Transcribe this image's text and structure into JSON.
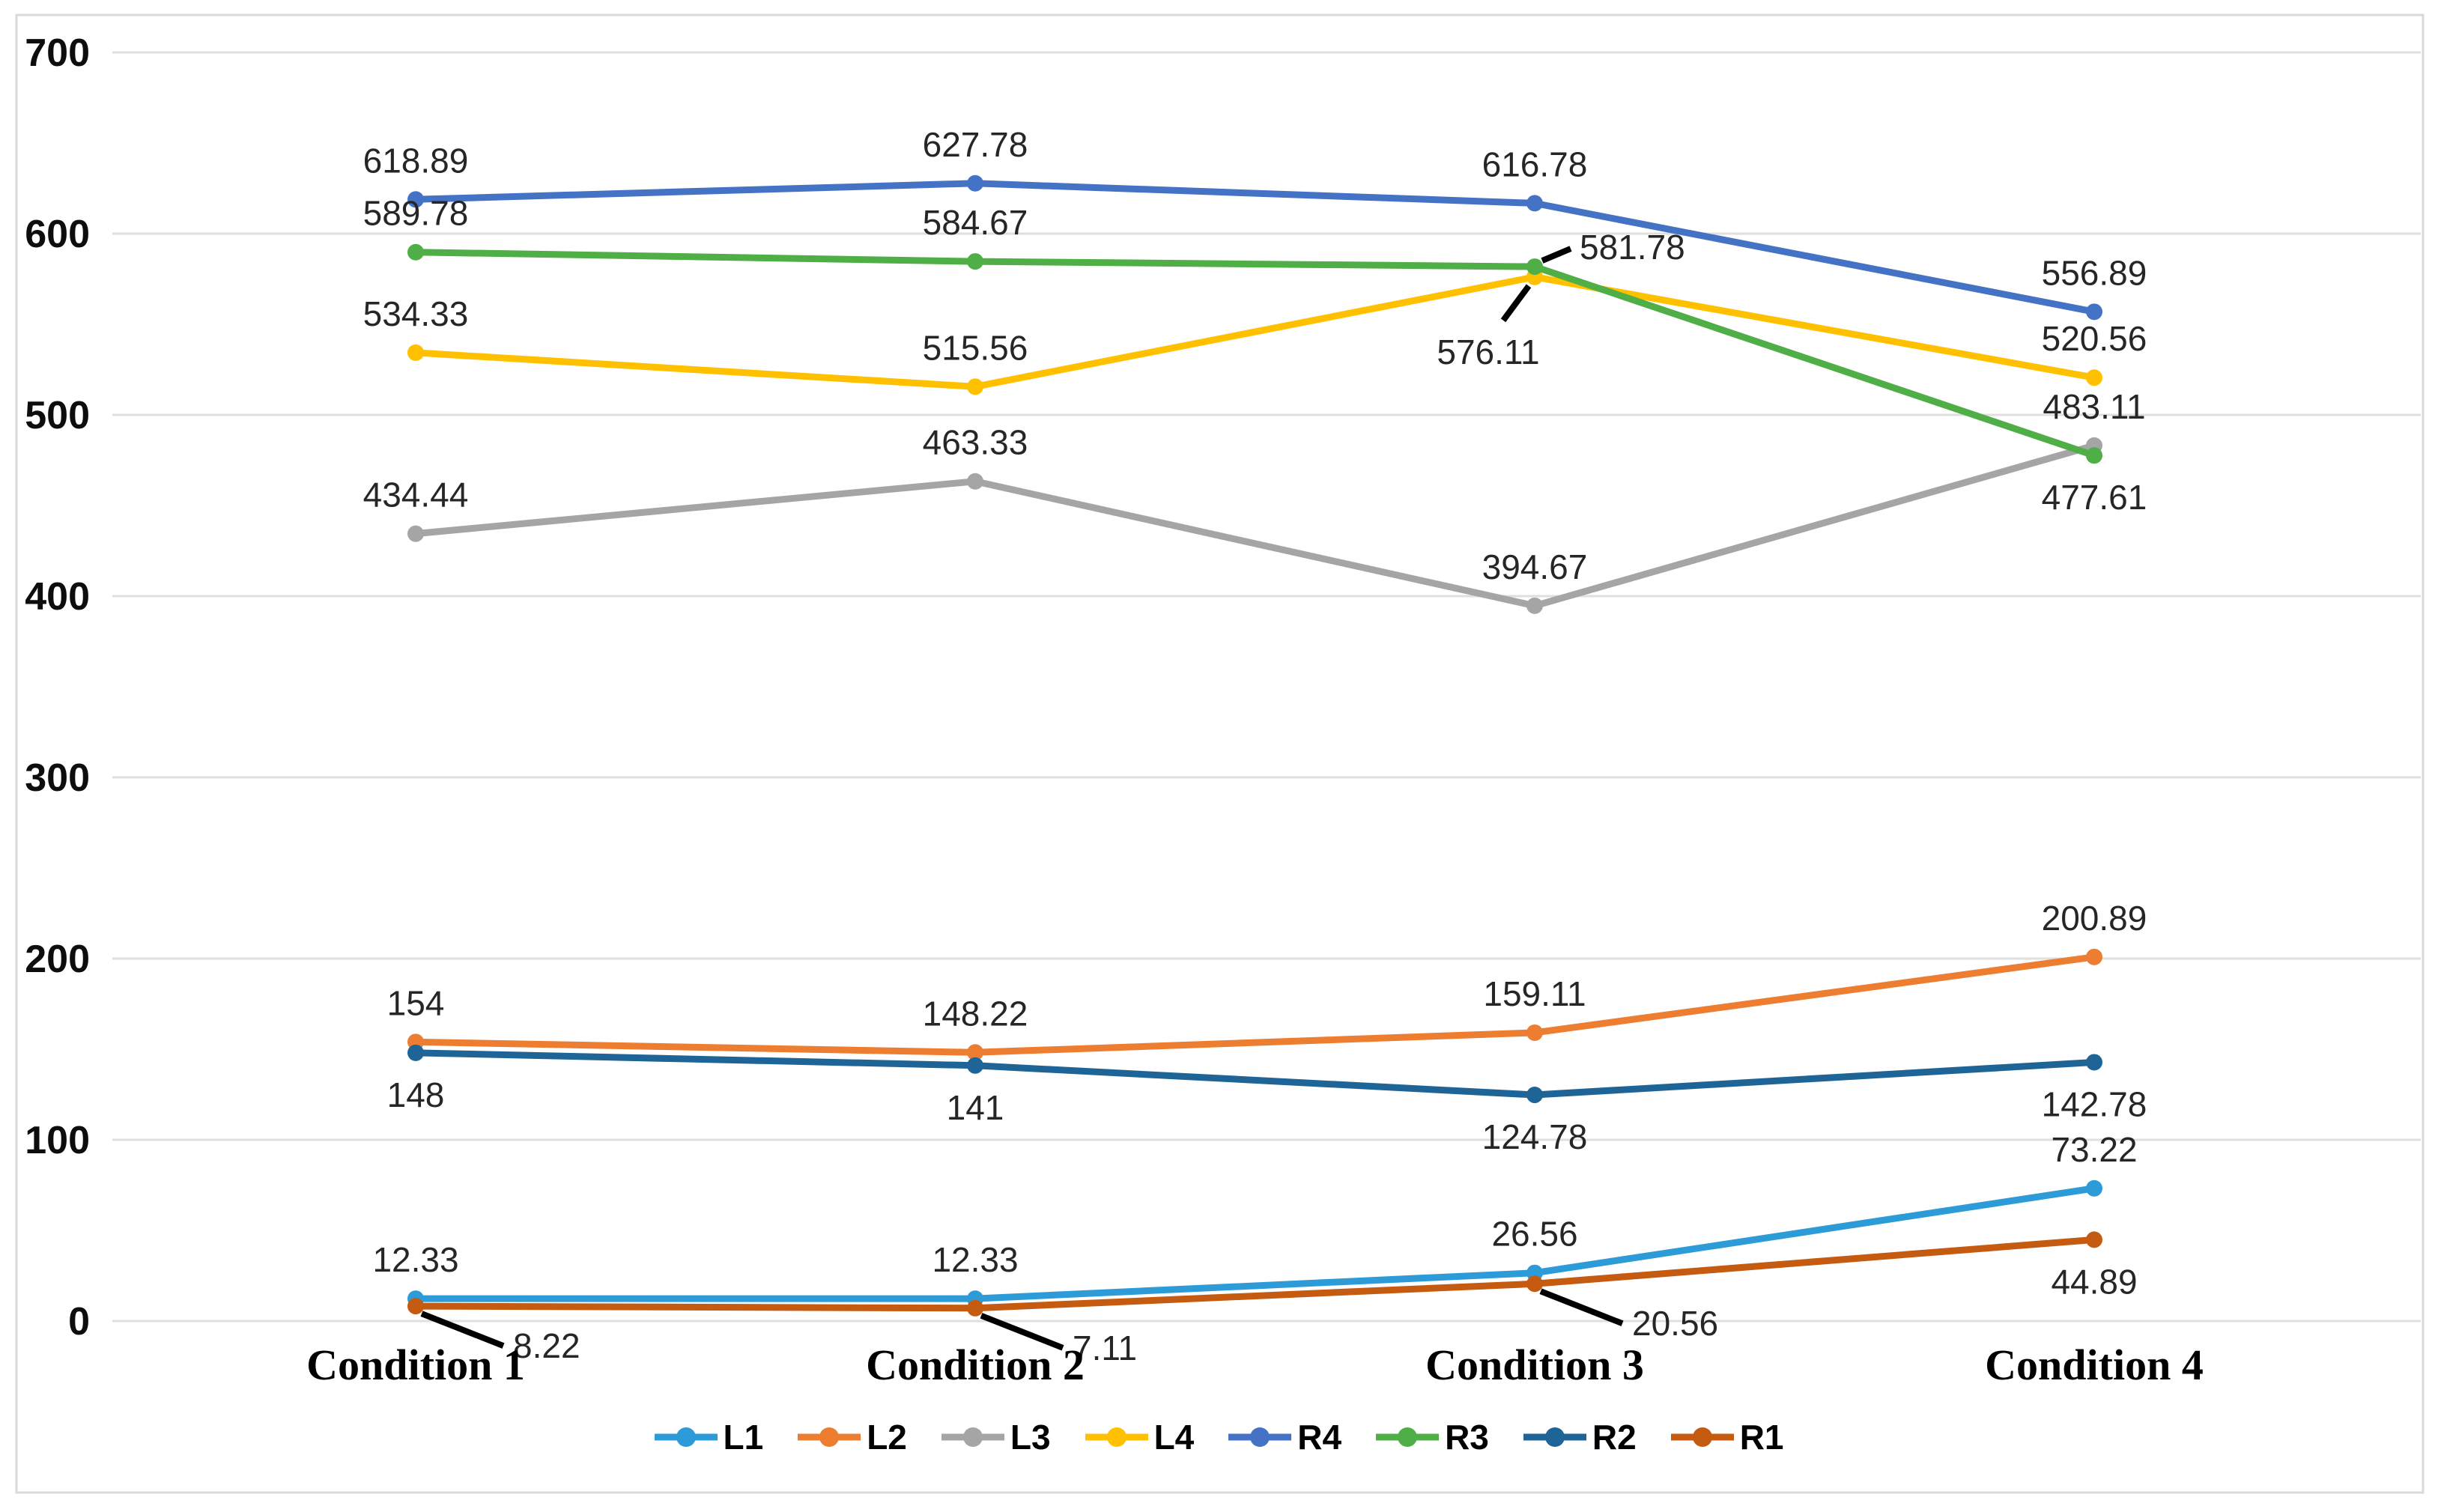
{
  "chart_data": {
    "type": "line",
    "title": "",
    "xlabel": "",
    "ylabel": "",
    "categories": [
      "Condition 1",
      "Condition 2",
      "Condition 3",
      "Condition 4"
    ],
    "series": [
      {
        "name": "L1",
        "color": "#2D9BD7",
        "values": [
          12.33,
          12.33,
          26.56,
          73.22
        ],
        "labels": [
          "12.33",
          "12.33",
          "26.56",
          "73.22"
        ],
        "label_placements": [
          "above",
          "above",
          "above",
          "above"
        ]
      },
      {
        "name": "L2",
        "color": "#ED7D31",
        "values": [
          154,
          148.22,
          159.11,
          200.89
        ],
        "labels": [
          "154",
          "148.22",
          "159.11",
          "200.89"
        ],
        "label_placements": [
          "above",
          "above",
          "above",
          "above"
        ]
      },
      {
        "name": "L3",
        "color": "#A5A5A5",
        "values": [
          434.44,
          463.33,
          394.67,
          483.11
        ],
        "labels": [
          "434.44",
          "463.33",
          "394.67",
          "483.11"
        ],
        "label_placements": [
          "above",
          "above",
          "above",
          "above"
        ]
      },
      {
        "name": "L4",
        "color": "#FFC000",
        "values": [
          534.33,
          515.56,
          576.11,
          520.56
        ],
        "labels": [
          "534.33",
          "515.56",
          "576.11",
          "520.56"
        ],
        "label_placements": [
          "above",
          "above",
          "leader-down-left",
          "above"
        ]
      },
      {
        "name": "R4",
        "color": "#4472C4",
        "values": [
          618.89,
          627.78,
          616.78,
          556.89
        ],
        "labels": [
          "618.89",
          "627.78",
          "616.78",
          "556.89"
        ],
        "label_placements": [
          "above",
          "above",
          "above",
          "above"
        ]
      },
      {
        "name": "R3",
        "color": "#4FAE46",
        "values": [
          589.78,
          584.67,
          581.78,
          477.61
        ],
        "labels": [
          "589.78",
          "584.67",
          "581.78",
          "477.61"
        ],
        "label_placements": [
          "above",
          "above",
          "leader-up-right",
          "below"
        ]
      },
      {
        "name": "R2",
        "color": "#1F6496",
        "values": [
          148,
          141,
          124.78,
          142.78
        ],
        "labels": [
          "148",
          "141",
          "124.78",
          "142.78"
        ],
        "label_placements": [
          "below",
          "below",
          "below",
          "below"
        ]
      },
      {
        "name": "R1",
        "color": "#C55A11",
        "values": [
          8.22,
          7.11,
          20.56,
          44.89
        ],
        "labels": [
          "8.22",
          "7.11",
          "20.56",
          "44.89"
        ],
        "label_placements": [
          "leader-down-right",
          "leader-down-right",
          "leader-down-right",
          "below"
        ]
      }
    ],
    "yticks": [
      "0",
      "100",
      "200",
      "300",
      "400",
      "500",
      "600",
      "700"
    ],
    "ylim": [
      0,
      700
    ],
    "grid": true,
    "legend_position": "bottom",
    "legend_order": [
      "L1",
      "L2",
      "L3",
      "L4",
      "R4",
      "R3",
      "R2",
      "R1"
    ]
  },
  "colors": {
    "gridline": "#DFDFDF",
    "figure_border": "#D9D9D9",
    "data_label_text": "#262626",
    "tick_text": "#0D0D0D",
    "leader_line": "#000000",
    "background": "#FFFFFF"
  }
}
